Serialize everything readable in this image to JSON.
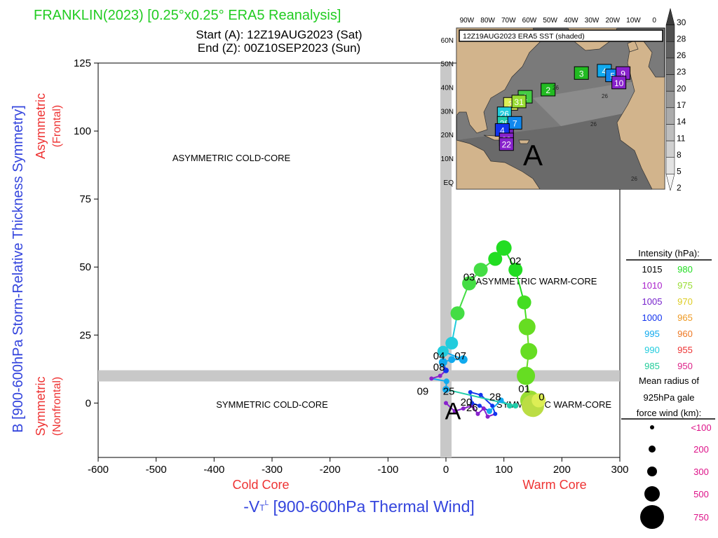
{
  "header": {
    "title": "FRANKLIN(2023) [0.25°x0.25° ERA5 Reanalysis]",
    "start": "Start (A): 12Z19AUG2023 (Sat)",
    "end": "End (Z): 00Z10SEP2023 (Sun)"
  },
  "colors": {
    "title": "#22cc22",
    "axis_blue": "#3344dd",
    "axis_red": "#ee3333",
    "center_bar": "#c8c8c8"
  },
  "chart_data": {
    "type": "scatter",
    "xlabel": "-V_T^L [900-600hPa Thermal Wind]",
    "ylabel": "B [900-600hPa Storm-Relative Thickness Symmetry]",
    "xlim": [
      -600,
      300
    ],
    "ylim": [
      -20,
      125
    ],
    "xticks": [
      -600,
      -500,
      -400,
      -300,
      -200,
      -100,
      0,
      100,
      200,
      300
    ],
    "yticks": [
      0,
      25,
      50,
      75,
      100,
      125
    ],
    "x_side_labels": {
      "cold": "Cold Core",
      "warm": "Warm Core"
    },
    "y_side_labels": {
      "upper": "Asymmetric",
      "upper_sub": "(Frontal)",
      "lower": "Symmetric",
      "lower_sub": "(Nonfrontal)"
    },
    "quadrant_labels": {
      "asym_cold": "ASYMMETRIC COLD-CORE",
      "asym_warm": "ASYMMETRIC WARM-CORE",
      "sym_cold": "SYMMETRIC COLD-CORE",
      "sym_warm": "SYMMETRIC WARM-CORE"
    },
    "start_marker": "A",
    "track": [
      {
        "x": 0,
        "y": 0,
        "color": "#8822cc",
        "size": 3
      },
      {
        "x": 15,
        "y": -3,
        "color": "#8822cc",
        "size": 3
      },
      {
        "x": 30,
        "y": -2,
        "color": "#8822cc",
        "size": 3
      },
      {
        "x": 45,
        "y": -1,
        "color": "#8822cc",
        "size": 3
      },
      {
        "x": 55,
        "y": -4,
        "color": "#8822cc",
        "size": 3
      },
      {
        "x": 65,
        "y": -2,
        "color": "#8822cc",
        "size": 3
      },
      {
        "x": 72,
        "y": -5,
        "color": "#8822cc",
        "size": 3
      },
      {
        "x": 85,
        "y": -4,
        "color": "#1133ee",
        "size": 3
      },
      {
        "x": 80,
        "y": -1,
        "color": "#1133ee",
        "size": 3
      },
      {
        "x": 60,
        "y": 3,
        "color": "#1133ee",
        "size": 3
      },
      {
        "x": 42,
        "y": 4,
        "color": "#1133ee",
        "size": 3
      },
      {
        "x": 45,
        "y": 0,
        "color": "#1133ee",
        "size": 3
      },
      {
        "x": 58,
        "y": -1,
        "color": "#1133ee",
        "size": 3
      },
      {
        "x": 75,
        "y": -3,
        "color": "#11aaee",
        "size": 4
      },
      {
        "x": 95,
        "y": 1,
        "color": "#11aaee",
        "size": 4
      },
      {
        "x": 110,
        "y": -1,
        "color": "#22ccaa",
        "size": 4
      },
      {
        "x": 120,
        "y": -1,
        "color": "#22ccaa",
        "size": 4
      },
      {
        "x": 0,
        "y": 5,
        "color": "#11aaee",
        "size": 5
      },
      {
        "x": 1,
        "y": 8,
        "color": "#11aaee",
        "size": 4
      },
      {
        "x": -25,
        "y": 9,
        "color": "#8822cc",
        "size": 3
      },
      {
        "x": -10,
        "y": 10,
        "color": "#8822cc",
        "size": 3
      },
      {
        "x": 0,
        "y": 12,
        "color": "#1133ee",
        "size": 4
      },
      {
        "x": -5,
        "y": 15,
        "color": "#11aaee",
        "size": 6
      },
      {
        "x": 10,
        "y": 16,
        "color": "#11aaee",
        "size": 5
      },
      {
        "x": 30,
        "y": 16,
        "color": "#11aaee",
        "size": 6
      },
      {
        "x": -5,
        "y": 19,
        "color": "#22ccdd",
        "size": 8
      },
      {
        "x": 10,
        "y": 22,
        "color": "#22ccdd",
        "size": 9
      },
      {
        "x": 20,
        "y": 33,
        "color": "#44dd44",
        "size": 10
      },
      {
        "x": 40,
        "y": 44,
        "color": "#44dd44",
        "size": 10
      },
      {
        "x": 60,
        "y": 49,
        "color": "#44dd44",
        "size": 10
      },
      {
        "x": 85,
        "y": 53,
        "color": "#22dd22",
        "size": 10
      },
      {
        "x": 100,
        "y": 57,
        "color": "#22dd22",
        "size": 11
      },
      {
        "x": 120,
        "y": 49,
        "color": "#22dd22",
        "size": 10
      },
      {
        "x": 135,
        "y": 37,
        "color": "#44dd22",
        "size": 10
      },
      {
        "x": 140,
        "y": 28,
        "color": "#66dd22",
        "size": 12
      },
      {
        "x": 143,
        "y": 19,
        "color": "#66dd22",
        "size": 12
      },
      {
        "x": 138,
        "y": 10,
        "color": "#66dd22",
        "size": 13
      },
      {
        "x": 145,
        "y": 1,
        "color": "#99dd33",
        "size": 14
      },
      {
        "x": 150,
        "y": -1,
        "color": "#bbdd44",
        "size": 16
      },
      {
        "x": 160,
        "y": 1,
        "color": "#ddee55",
        "size": 10
      }
    ],
    "point_labels": [
      {
        "x": 120,
        "y": 51,
        "text": "02"
      },
      {
        "x": 40,
        "y": 45,
        "text": "03"
      },
      {
        "x": 135,
        "y": 4,
        "text": "01"
      },
      {
        "x": 25,
        "y": 16,
        "text": "07"
      },
      {
        "x": -12,
        "y": 16,
        "text": "04"
      },
      {
        "x": -12,
        "y": 12,
        "text": "08"
      },
      {
        "x": -40,
        "y": 3,
        "text": "09"
      },
      {
        "x": 5,
        "y": 3,
        "text": "25"
      },
      {
        "x": 85,
        "y": 1,
        "text": "28"
      },
      {
        "x": 35,
        "y": -1,
        "text": "20"
      },
      {
        "x": 45,
        "y": -3,
        "text": "26"
      },
      {
        "x": 165,
        "y": 1,
        "text": "0"
      }
    ],
    "inset_map": {
      "title": "12Z19AUG2023 ERA5 SST (shaded)",
      "lon_labels": [
        "90W",
        "80W",
        "70W",
        "60W",
        "50W",
        "40W",
        "30W",
        "20W",
        "10W",
        "0"
      ],
      "lat_labels": [
        "60N",
        "50N",
        "40N",
        "30N",
        "20N",
        "10N",
        "EQ"
      ],
      "colorbar_ticks": [
        "30",
        "28",
        "26",
        "23",
        "20",
        "17",
        "14",
        "11",
        "8",
        "5",
        "2"
      ],
      "sst_labels": [
        "26",
        "26",
        "26",
        "26"
      ],
      "track_boxes": [
        {
          "label": "1",
          "lon": -71,
          "lat": 20,
          "color": "#7722bb"
        },
        {
          "label": "1",
          "lon": -62,
          "lat": 36,
          "color": "#44cc44"
        },
        {
          "label": "2",
          "lon": -51,
          "lat": 39,
          "color": "#22bb22"
        },
        {
          "label": "3",
          "lon": -35,
          "lat": 46,
          "color": "#22bb22"
        },
        {
          "label": "4",
          "lon": -24,
          "lat": 47,
          "color": "#11aaee"
        },
        {
          "label": "5",
          "lon": -20,
          "lat": 45,
          "color": "#1188ee"
        },
        {
          "label": "9",
          "lon": -15,
          "lat": 46,
          "color": "#8822cc"
        },
        {
          "label": "10",
          "lon": -17,
          "lat": 42,
          "color": "#8822cc"
        },
        {
          "label": "3",
          "lon": -69,
          "lat": 33,
          "color": "#ddee55"
        },
        {
          "label": "31",
          "lon": -65,
          "lat": 34,
          "color": "#99dd33"
        },
        {
          "label": "26",
          "lon": -72,
          "lat": 29,
          "color": "#22ccdd"
        },
        {
          "label": "28",
          "lon": -72,
          "lat": 25,
          "color": "#22ccaa"
        },
        {
          "label": "7",
          "lon": -67,
          "lat": 25,
          "color": "#1188ee"
        },
        {
          "label": "4",
          "lon": -73,
          "lat": 22,
          "color": "#1133ee"
        },
        {
          "label": "23",
          "lon": -71,
          "lat": 18,
          "color": "#8822cc"
        },
        {
          "label": "22",
          "lon": -71,
          "lat": 16,
          "color": "#8822cc"
        }
      ],
      "start_marker": "A"
    },
    "legend": {
      "intensity_title": "Intensity (hPa):",
      "intensity": [
        {
          "left": "1015",
          "left_color": "#000000",
          "right": "980",
          "right_color": "#22dd22"
        },
        {
          "left": "1010",
          "left_color": "#aa22cc",
          "right": "975",
          "right_color": "#99dd33"
        },
        {
          "left": "1005",
          "left_color": "#7722cc",
          "right": "970",
          "right_color": "#ddcc22"
        },
        {
          "left": "1000",
          "left_color": "#1133ee",
          "right": "965",
          "right_color": "#ee9922"
        },
        {
          "left": "995",
          "left_color": "#11aaee",
          "right": "960",
          "right_color": "#ee7722"
        },
        {
          "left": "990",
          "left_color": "#22ccdd",
          "right": "955",
          "right_color": "#ee3333"
        },
        {
          "left": "985",
          "left_color": "#22cc99",
          "right": "950",
          "right_color": "#dd2288"
        }
      ],
      "radius_title_1": "Mean radius of",
      "radius_title_2": "925hPa gale",
      "radius_title_3": "force wind (km):",
      "radius": [
        {
          "label": "<100",
          "r": 3
        },
        {
          "label": "200",
          "r": 5
        },
        {
          "label": "300",
          "r": 7
        },
        {
          "label": "500",
          "r": 11
        },
        {
          "label": "750",
          "r": 17
        }
      ]
    }
  }
}
